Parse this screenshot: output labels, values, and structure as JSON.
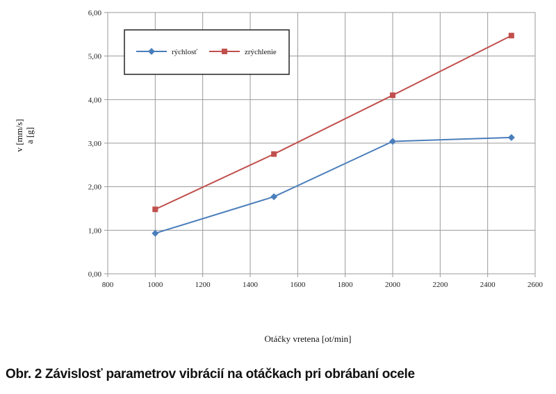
{
  "caption": "Obr. 2 Závislosť parametrov vibrácií na otáčkach pri obrábaní ocele",
  "chart_data": {
    "type": "line",
    "x": [
      1000,
      1500,
      2000,
      2500
    ],
    "xlim": [
      800,
      2600
    ],
    "xticks": [
      "800",
      "1000",
      "1200",
      "1400",
      "1600",
      "1800",
      "2000",
      "2200",
      "2400",
      "2600"
    ],
    "ylim": [
      0,
      6
    ],
    "yticks": [
      "0,00",
      "1,00",
      "2,00",
      "3,00",
      "4,00",
      "5,00",
      "6,00"
    ],
    "xlabel": "Otáčky vretena [ot/min]",
    "ylabel_line1": "v [mm/s]",
    "ylabel_line2": "a [g]",
    "grid": "vertical and horizontal",
    "legend_position": "top-left",
    "series": [
      {
        "name": "rýchlosť",
        "color": "#4a7ebb",
        "marker": "diamond",
        "values": [
          0.93,
          1.77,
          3.04,
          3.13
        ]
      },
      {
        "name": "zrýchlenie",
        "color": "#c0504d",
        "marker": "square",
        "values": [
          1.48,
          2.75,
          4.1,
          5.47
        ]
      }
    ]
  }
}
